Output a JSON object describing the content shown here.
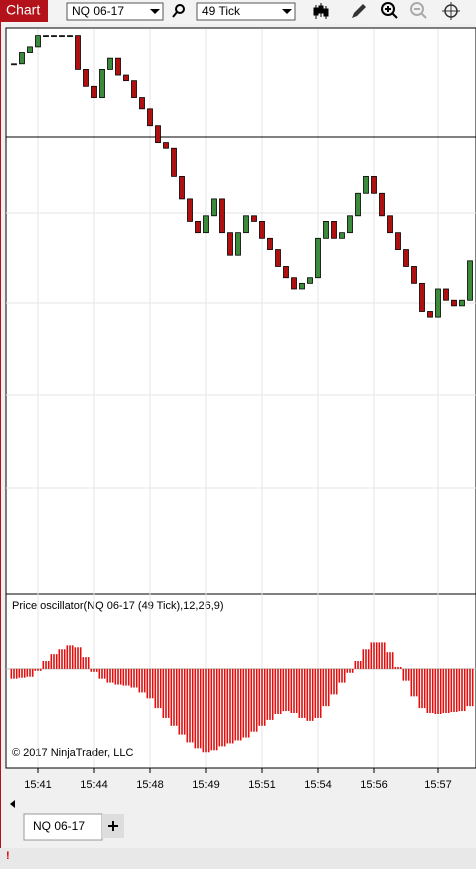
{
  "toolbar": {
    "title": "Chart",
    "instrument": "NQ 06-17",
    "interval": "49 Tick"
  },
  "chart_data": [
    {
      "type": "candlestick",
      "categories": [
        null,
        null,
        null,
        "15:41",
        null,
        null,
        null,
        null,
        null,
        null,
        "15:44",
        null,
        null,
        null,
        null,
        null,
        null,
        "15:48",
        null,
        null,
        null,
        null,
        null,
        null,
        "15:49",
        null,
        null,
        null,
        null,
        null,
        null,
        "15:51",
        null,
        null,
        null,
        null,
        null,
        null,
        "15:54",
        null,
        null,
        null,
        null,
        null,
        null,
        "15:56",
        null,
        null,
        null,
        null,
        null,
        null,
        null,
        "15:57",
        null,
        null,
        null,
        null
      ],
      "close": [
        94,
        96,
        97,
        99,
        99,
        99,
        99,
        99,
        93,
        90,
        88,
        93,
        95,
        92,
        91,
        88,
        86,
        83,
        80,
        79,
        74,
        70,
        66,
        64,
        67,
        70,
        64,
        60,
        64,
        67,
        66,
        63,
        61,
        58,
        56,
        54,
        55,
        56,
        63,
        66,
        63,
        64,
        67,
        71,
        74,
        71,
        67,
        64,
        61,
        58,
        55,
        50,
        49,
        54,
        52,
        51,
        52,
        59
      ],
      "ylim": [
        0,
        100
      ],
      "horizontal_line": 81,
      "up_color": "#3c8a3c",
      "down_color": "#b01010"
    },
    {
      "type": "bar",
      "title": "Price oscillator(NQ 06-17 (49 Tick),12,26,9)",
      "values": [
        -10,
        -9,
        -8,
        -2,
        8,
        15,
        20,
        24,
        22,
        12,
        -3,
        -10,
        -14,
        -16,
        -17,
        -19,
        -24,
        -30,
        -40,
        -50,
        -58,
        -67,
        -75,
        -81,
        -85,
        -83,
        -79,
        -76,
        -73,
        -70,
        -64,
        -58,
        -52,
        -46,
        -43,
        -45,
        -50,
        -53,
        -50,
        -38,
        -26,
        -14,
        -4,
        8,
        20,
        27,
        27,
        17,
        2,
        -12,
        -28,
        -40,
        -45,
        -46,
        -45,
        -44,
        -43,
        -38
      ],
      "ylim": [
        -100,
        60
      ],
      "color": "#e01010"
    }
  ],
  "copyright": "© 2017 NinjaTrader, LLC",
  "tabs": [
    "NQ 06-17"
  ]
}
